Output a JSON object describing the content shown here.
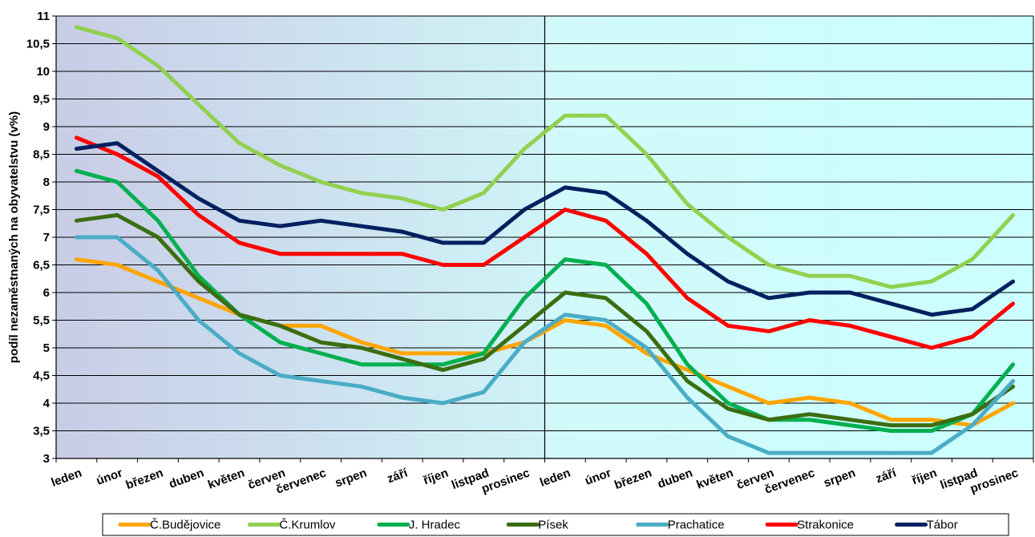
{
  "chart_data": {
    "type": "line",
    "ylabel": "podíl nezaměstnaných na obyvatelstvu (v%)",
    "ylim": [
      3,
      11
    ],
    "yticks": [
      "3",
      "3,5",
      "4",
      "4,5",
      "5",
      "5,5",
      "6",
      "6,5",
      "7",
      "7,5",
      "8",
      "8,5",
      "9",
      "9,5",
      "10",
      "10,5",
      "11"
    ],
    "categories": [
      "leden",
      "únor",
      "březen",
      "duben",
      "květen",
      "červen",
      "červenec",
      "srpen",
      "září",
      "říjen",
      "listpad",
      "prosinec",
      "leden",
      "únor",
      "březen",
      "duben",
      "květen",
      "červen",
      "červenec",
      "srpen",
      "září",
      "říjen",
      "listpad",
      "prosinec"
    ],
    "grid": true,
    "legend_position": "bottom",
    "series": [
      {
        "name": "Č.Budějovice",
        "color": "#FFA500",
        "values": [
          6.6,
          6.5,
          6.2,
          5.9,
          5.6,
          5.4,
          5.4,
          5.1,
          4.9,
          4.9,
          4.9,
          5.1,
          5.5,
          5.4,
          4.9,
          4.6,
          4.3,
          4.0,
          4.1,
          4.0,
          3.7,
          3.7,
          3.6,
          4.0
        ]
      },
      {
        "name": "Č.Krumlov",
        "color": "#92D050",
        "values": [
          10.8,
          10.6,
          10.1,
          9.4,
          8.7,
          8.3,
          8.0,
          7.8,
          7.7,
          7.5,
          7.8,
          8.6,
          9.2,
          9.2,
          8.5,
          7.6,
          7.0,
          6.5,
          6.3,
          6.3,
          6.1,
          6.2,
          6.6,
          7.4
        ]
      },
      {
        "name": "J. Hradec",
        "color": "#00B050",
        "values": [
          8.2,
          8.0,
          7.3,
          6.3,
          5.6,
          5.1,
          4.9,
          4.7,
          4.7,
          4.7,
          4.9,
          5.9,
          6.6,
          6.5,
          5.8,
          4.7,
          4.0,
          3.7,
          3.7,
          3.6,
          3.5,
          3.5,
          3.8,
          4.7
        ]
      },
      {
        "name": "Písek",
        "color": "#3B6E10",
        "values": [
          7.3,
          7.4,
          7.0,
          6.2,
          5.6,
          5.4,
          5.1,
          5.0,
          4.8,
          4.6,
          4.8,
          5.4,
          6.0,
          5.9,
          5.3,
          4.4,
          3.9,
          3.7,
          3.8,
          3.7,
          3.6,
          3.6,
          3.8,
          4.3
        ]
      },
      {
        "name": "Prachatice",
        "color": "#4BACC6",
        "values": [
          7.0,
          7.0,
          6.4,
          5.5,
          4.9,
          4.5,
          4.4,
          4.3,
          4.1,
          4.0,
          4.2,
          5.1,
          5.6,
          5.5,
          5.0,
          4.1,
          3.4,
          3.1,
          3.1,
          3.1,
          3.1,
          3.1,
          3.6,
          4.4
        ]
      },
      {
        "name": "Strakonice",
        "color": "#FF0000",
        "values": [
          8.8,
          8.5,
          8.1,
          7.4,
          6.9,
          6.7,
          6.7,
          6.7,
          6.7,
          6.5,
          6.5,
          7.0,
          7.5,
          7.3,
          6.7,
          5.9,
          5.4,
          5.3,
          5.5,
          5.4,
          5.2,
          5.0,
          5.2,
          5.8
        ]
      },
      {
        "name": "Tábor",
        "color": "#002060",
        "values": [
          8.6,
          8.7,
          8.2,
          7.7,
          7.3,
          7.2,
          7.3,
          7.2,
          7.1,
          6.9,
          6.9,
          7.5,
          7.9,
          7.8,
          7.3,
          6.7,
          6.2,
          5.9,
          6.0,
          6.0,
          5.8,
          5.6,
          5.7,
          6.2
        ]
      }
    ]
  }
}
